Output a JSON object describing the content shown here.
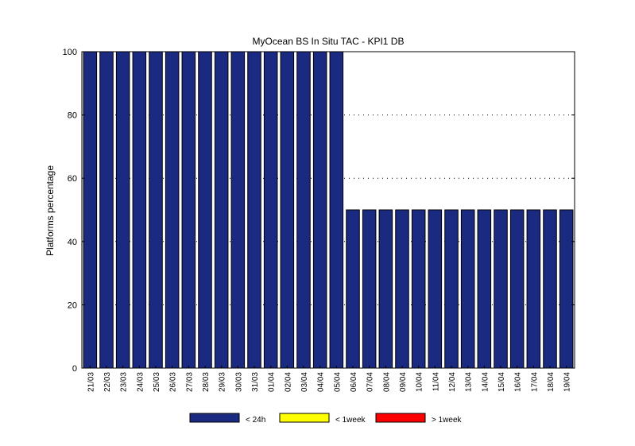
{
  "chart_data": {
    "type": "bar",
    "title": "MyOcean  BS In Situ TAC - KPI1  DB",
    "xlabel": "",
    "ylabel": "Platforms percentage",
    "ylim": [
      0,
      100
    ],
    "yticks": [
      0,
      20,
      40,
      60,
      80,
      100
    ],
    "grid": "horizontal dotted",
    "legend_position": "bottom",
    "categories": [
      "21/03",
      "22/03",
      "23/03",
      "24/03",
      "25/03",
      "26/03",
      "27/03",
      "28/03",
      "29/03",
      "30/03",
      "31/03",
      "01/04",
      "02/04",
      "03/04",
      "04/04",
      "05/04",
      "06/04",
      "07/04",
      "08/04",
      "09/04",
      "10/04",
      "11/04",
      "12/04",
      "13/04",
      "14/04",
      "15/04",
      "16/04",
      "17/04",
      "18/04",
      "19/04"
    ],
    "series": [
      {
        "name": "< 24h",
        "color": "#1a2a80",
        "values": [
          100,
          100,
          100,
          100,
          100,
          100,
          100,
          100,
          100,
          100,
          100,
          100,
          100,
          100,
          100,
          100,
          50,
          50,
          50,
          50,
          50,
          50,
          50,
          50,
          50,
          50,
          50,
          50,
          50,
          50
        ]
      },
      {
        "name": "< 1week",
        "color": "#ffff00",
        "values": [
          0,
          0,
          0,
          0,
          0,
          0,
          0,
          0,
          0,
          0,
          0,
          0,
          0,
          0,
          0,
          0,
          0,
          0,
          0,
          0,
          0,
          0,
          0,
          0,
          0,
          0,
          0,
          0,
          0,
          0
        ]
      },
      {
        "name": "> 1week",
        "color": "#ff0000",
        "values": [
          0,
          0,
          0,
          0,
          0,
          0,
          0,
          0,
          0,
          0,
          0,
          0,
          0,
          0,
          0,
          0,
          0,
          0,
          0,
          0,
          0,
          0,
          0,
          0,
          0,
          0,
          0,
          0,
          0,
          0
        ]
      }
    ]
  }
}
